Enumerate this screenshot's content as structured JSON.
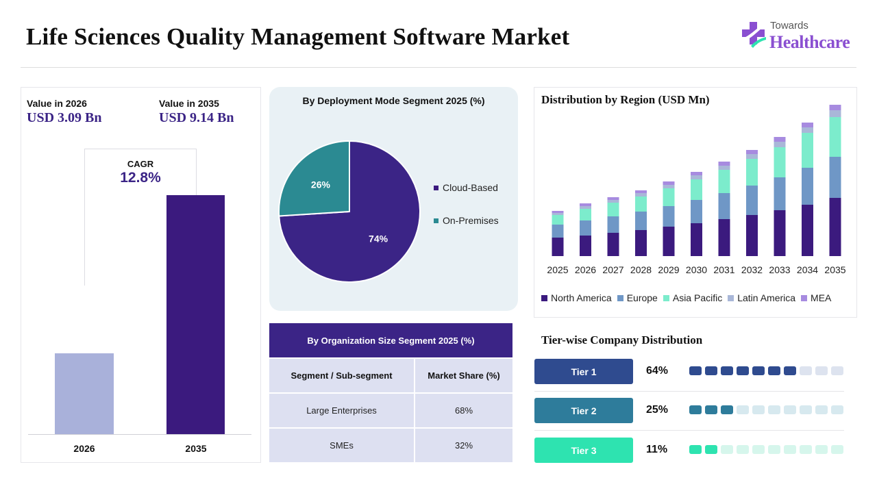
{
  "title": "Life Sciences Quality Management Software Market",
  "brand": {
    "line1": "Towards",
    "line2": "Healthcare"
  },
  "market_value": {
    "label_2026": "Value in 2026",
    "value_2026": "USD 3.09 Bn",
    "label_2035": "Value in 2035",
    "value_2035": "USD 9.14 Bn",
    "cagr_label": "CAGR",
    "cagr_value": "12.8%"
  },
  "deployment": {
    "title": "By Deployment Mode Segment 2025 (%)",
    "legend": [
      "Cloud-Based",
      "On-Premises"
    ]
  },
  "organization": {
    "title": "By Organization Size Segment 2025 (%)",
    "header": {
      "segment": "Segment / Sub-segment",
      "share": "Market Share (%)"
    },
    "rows": [
      {
        "segment": "Large Enterprises",
        "share": "68%"
      },
      {
        "segment": "SMEs",
        "share": "32%"
      }
    ]
  },
  "region": {
    "title": "Distribution by Region (USD Mn)"
  },
  "tiers": {
    "title": "Tier-wise Company Distribution",
    "items": [
      {
        "label": "Tier 1",
        "pct": "64%",
        "value": 64,
        "color": "#2f4b8f",
        "light": "#dde3ef"
      },
      {
        "label": "Tier 2",
        "pct": "25%",
        "value": 25,
        "color": "#2e7c9b",
        "light": "#d7e9ef"
      },
      {
        "label": "Tier 3",
        "pct": "11%",
        "value": 11,
        "color": "#2ee3b0",
        "light": "#d6f6ec"
      }
    ]
  },
  "colors": {
    "primary": "#3b2486",
    "light_bar": "#a9b1da",
    "teal": "#2b8a92",
    "north_america": "#3b1a7e",
    "europe": "#6f97c6",
    "asia_pacific": "#7ceccc",
    "latin_america": "#a9b7d8",
    "mea": "#a78be0"
  },
  "chart_data": [
    {
      "type": "bar",
      "categories": [
        "2026",
        "2035"
      ],
      "values": [
        3.09,
        9.14
      ]
    },
    {
      "type": "pie",
      "title": "By Deployment Mode Segment 2025 (%)",
      "labels": [
        "Cloud-Based",
        "On-Premises"
      ],
      "values": [
        74,
        26
      ],
      "value_labels": [
        "74%",
        "26%"
      ]
    },
    {
      "type": "bar",
      "stacked": true,
      "title": "Distribution by Region (USD Mn)",
      "categories": [
        "2025",
        "2026",
        "2027",
        "2028",
        "2029",
        "2030",
        "2031",
        "2032",
        "2033",
        "2034",
        "2035"
      ],
      "series": [
        {
          "name": "North America",
          "values": [
            27,
            30,
            34,
            38,
            43,
            48,
            54,
            60,
            67,
            75,
            85
          ]
        },
        {
          "name": "Europe",
          "values": [
            19,
            22,
            24,
            27,
            30,
            34,
            38,
            43,
            48,
            54,
            60
          ]
        },
        {
          "name": "Asia Pacific",
          "values": [
            14,
            17,
            20,
            22,
            26,
            30,
            34,
            39,
            44,
            51,
            58
          ]
        },
        {
          "name": "Latin America",
          "values": [
            3,
            4,
            4,
            5,
            5,
            6,
            6,
            7,
            8,
            8,
            10
          ]
        },
        {
          "name": "MEA",
          "values": [
            3,
            4,
            4,
            4,
            5,
            5,
            6,
            6,
            7,
            7,
            8
          ]
        }
      ],
      "legend": "bottom",
      "grid": false
    },
    {
      "type": "bar",
      "title": "Tier-wise Company Distribution",
      "categories": [
        "Tier 1",
        "Tier 2",
        "Tier 3"
      ],
      "values": [
        64,
        25,
        11
      ]
    }
  ]
}
